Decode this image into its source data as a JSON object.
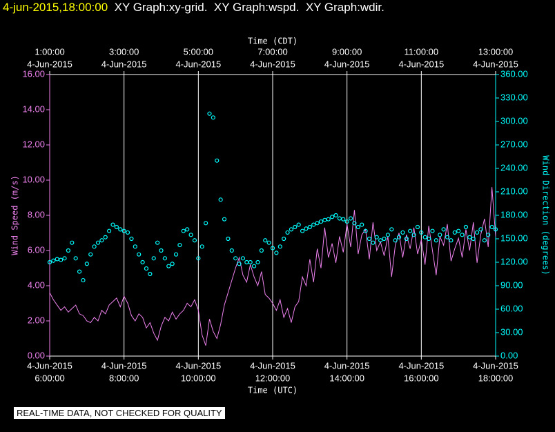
{
  "header": {
    "timestamp": "4-jun-2015,18:00:00",
    "graphs": [
      "XY Graph:xy-grid.",
      "XY Graph:wspd.",
      "XY Graph:wdir."
    ]
  },
  "footer": "REAL-TIME DATA, NOT CHECKED FOR QUALITY",
  "chart_data": {
    "type": "line-scatter",
    "x_label": "Time (UTC)",
    "x2_label": "Time (CDT)",
    "y_label": "Wind Speed (m/s)",
    "y2_label": "Wind Direction (degrees)",
    "xlim": [
      6,
      18
    ],
    "xticks": [
      {
        "value": 6,
        "label": [
          "4-Jun-2015",
          "6:00:00"
        ]
      },
      {
        "value": 8,
        "label": [
          "4-Jun-2015",
          "8:00:00"
        ]
      },
      {
        "value": 10,
        "label": [
          "4-Jun-2015",
          "10:00:00"
        ]
      },
      {
        "value": 12,
        "label": [
          "4-Jun-2015",
          "12:00:00"
        ]
      },
      {
        "value": 14,
        "label": [
          "4-Jun-2015",
          "14:00:00"
        ]
      },
      {
        "value": 16,
        "label": [
          "4-Jun-2015",
          "16:00:00"
        ]
      },
      {
        "value": 18,
        "label": [
          "4-Jun-2015",
          "18:00:00"
        ]
      }
    ],
    "x2ticks": [
      {
        "value": 6,
        "label": [
          "1:00:00",
          "4-Jun-2015"
        ]
      },
      {
        "value": 8,
        "label": [
          "3:00:00",
          "4-Jun-2015"
        ]
      },
      {
        "value": 10,
        "label": [
          "5:00:00",
          "4-Jun-2015"
        ]
      },
      {
        "value": 12,
        "label": [
          "7:00:00",
          "4-Jun-2015"
        ]
      },
      {
        "value": 14,
        "label": [
          "9:00:00",
          "4-Jun-2015"
        ]
      },
      {
        "value": 16,
        "label": [
          "11:00:00",
          "4-Jun-2015"
        ]
      },
      {
        "value": 18,
        "label": [
          "13:00:00",
          "4-Jun-2015"
        ]
      }
    ],
    "ylim": [
      0,
      16
    ],
    "yticks": [
      {
        "value": 0,
        "label": "0.00"
      },
      {
        "value": 2,
        "label": "2.00"
      },
      {
        "value": 4,
        "label": "4.00"
      },
      {
        "value": 6,
        "label": "6.00"
      },
      {
        "value": 8,
        "label": "8.00"
      },
      {
        "value": 10,
        "label": "10.00"
      },
      {
        "value": 12,
        "label": "12.00"
      },
      {
        "value": 14,
        "label": "14.00"
      },
      {
        "value": 16,
        "label": "16.00"
      }
    ],
    "y2lim": [
      0,
      360
    ],
    "y2ticks": [
      {
        "value": 0,
        "label": "0.00"
      },
      {
        "value": 30,
        "label": "30.00"
      },
      {
        "value": 60,
        "label": "60.00"
      },
      {
        "value": 90,
        "label": "90.00"
      },
      {
        "value": 120,
        "label": "120.00"
      },
      {
        "value": 150,
        "label": "150.00"
      },
      {
        "value": 180,
        "label": "180.00"
      },
      {
        "value": 210,
        "label": "210.00"
      },
      {
        "value": 240,
        "label": "240.00"
      },
      {
        "value": 270,
        "label": "270.00"
      },
      {
        "value": 300,
        "label": "300.00"
      },
      {
        "value": 330,
        "label": "330.00"
      },
      {
        "value": 360,
        "label": "360.00"
      }
    ],
    "grid": true,
    "x": [
      6.0,
      6.1,
      6.2,
      6.3,
      6.4,
      6.5,
      6.6,
      6.7,
      6.8,
      6.9,
      7.0,
      7.1,
      7.2,
      7.3,
      7.4,
      7.5,
      7.6,
      7.7,
      7.8,
      7.9,
      8.0,
      8.1,
      8.2,
      8.3,
      8.4,
      8.5,
      8.6,
      8.7,
      8.8,
      8.9,
      9.0,
      9.1,
      9.2,
      9.3,
      9.4,
      9.5,
      9.6,
      9.7,
      9.8,
      9.9,
      10.0,
      10.1,
      10.2,
      10.3,
      10.4,
      10.5,
      10.6,
      10.7,
      10.8,
      10.9,
      11.0,
      11.1,
      11.2,
      11.3,
      11.4,
      11.5,
      11.6,
      11.7,
      11.8,
      11.9,
      12.0,
      12.1,
      12.2,
      12.3,
      12.4,
      12.5,
      12.6,
      12.7,
      12.8,
      12.9,
      13.0,
      13.1,
      13.2,
      13.3,
      13.4,
      13.5,
      13.6,
      13.7,
      13.8,
      13.9,
      14.0,
      14.1,
      14.2,
      14.3,
      14.4,
      14.5,
      14.6,
      14.7,
      14.8,
      14.9,
      15.0,
      15.1,
      15.2,
      15.3,
      15.4,
      15.5,
      15.6,
      15.7,
      15.8,
      15.9,
      16.0,
      16.1,
      16.2,
      16.3,
      16.4,
      16.5,
      16.6,
      16.7,
      16.8,
      16.9,
      17.0,
      17.1,
      17.2,
      17.3,
      17.4,
      17.5,
      17.6,
      17.7,
      17.8,
      17.9,
      18.0
    ],
    "series": [
      {
        "name": "wspd",
        "color": "#ee82ee",
        "axis": "y",
        "kind": "line",
        "values": [
          3.6,
          3.2,
          2.9,
          2.6,
          2.8,
          2.5,
          2.7,
          2.9,
          2.4,
          2.3,
          2.0,
          1.9,
          2.2,
          2.0,
          2.6,
          2.4,
          2.9,
          3.1,
          3.3,
          2.8,
          3.4,
          3.0,
          2.3,
          2.0,
          2.4,
          2.2,
          1.6,
          1.9,
          1.3,
          0.9,
          1.7,
          2.2,
          2.0,
          2.5,
          2.1,
          2.4,
          2.6,
          3.0,
          2.8,
          3.2,
          2.6,
          1.2,
          0.6,
          2.1,
          1.4,
          1.0,
          1.8,
          2.9,
          3.6,
          4.3,
          5.0,
          5.6,
          4.6,
          4.2,
          5.2,
          4.5,
          4.0,
          4.8,
          3.5,
          3.3,
          3.0,
          2.6,
          3.2,
          2.2,
          2.7,
          1.9,
          2.8,
          3.1,
          4.5,
          4.0,
          5.5,
          4.2,
          6.1,
          5.0,
          7.3,
          5.6,
          6.4,
          5.3,
          6.8,
          5.9,
          7.5,
          6.2,
          8.3,
          5.8,
          6.9,
          7.2,
          5.5,
          7.6,
          6.0,
          6.5,
          5.7,
          6.8,
          4.5,
          6.3,
          7.0,
          5.6,
          6.9,
          6.1,
          7.3,
          5.8,
          6.6,
          5.2,
          7.4,
          6.0,
          4.6,
          6.8,
          6.3,
          7.5,
          5.4,
          6.1,
          6.7,
          5.6,
          7.2,
          6.0,
          7.6,
          5.3,
          6.9,
          7.8,
          6.2,
          9.6,
          6.8
        ]
      },
      {
        "name": "wdir",
        "color": "#00ffff",
        "axis": "y2",
        "kind": "scatter",
        "values": [
          120,
          122,
          124,
          123,
          125,
          135,
          145,
          125,
          108,
          97,
          118,
          130,
          140,
          145,
          148,
          152,
          160,
          168,
          165,
          162,
          160,
          158,
          150,
          140,
          130,
          120,
          112,
          105,
          125,
          145,
          135,
          125,
          115,
          118,
          130,
          142,
          160,
          162,
          155,
          148,
          125,
          140,
          170,
          310,
          305,
          250,
          200,
          175,
          150,
          135,
          125,
          118,
          125,
          120,
          120,
          115,
          120,
          135,
          148,
          145,
          138,
          132,
          140,
          150,
          158,
          162,
          165,
          168,
          160,
          163,
          165,
          168,
          170,
          172,
          174,
          175,
          178,
          180,
          176,
          175,
          172,
          176,
          170,
          165,
          168,
          160,
          150,
          145,
          152,
          148,
          150,
          155,
          162,
          148,
          152,
          158,
          150,
          160,
          155,
          165,
          158,
          152,
          150,
          160,
          148,
          155,
          162,
          152,
          148,
          158,
          160,
          155,
          165,
          152,
          150,
          158,
          162,
          148,
          155,
          165,
          162
        ]
      }
    ]
  }
}
